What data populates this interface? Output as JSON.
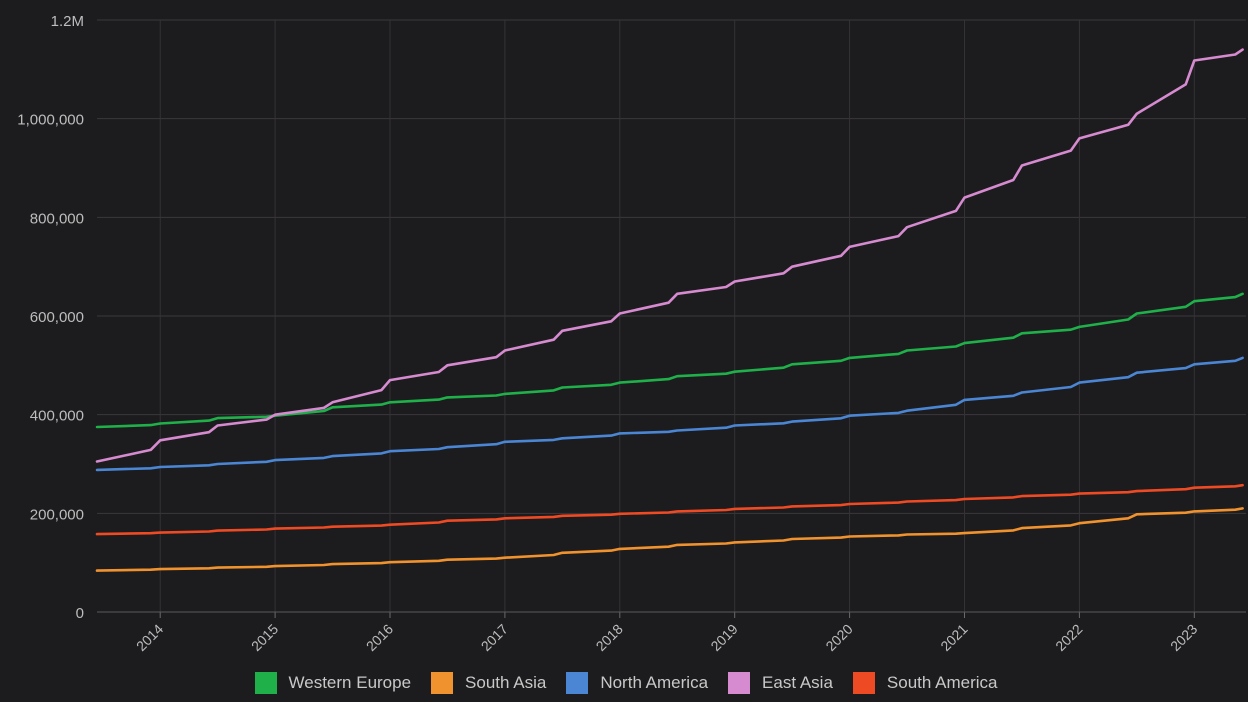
{
  "chart_data": {
    "type": "line",
    "title": "",
    "xlabel": "",
    "ylabel": "",
    "xlim": [
      2013.45,
      2023.45
    ],
    "ylim": [
      0,
      1200000
    ],
    "y_ticks": [
      {
        "value": 0,
        "label": "0"
      },
      {
        "value": 200000,
        "label": "200,000"
      },
      {
        "value": 400000,
        "label": "400,000"
      },
      {
        "value": 600000,
        "label": "600,000"
      },
      {
        "value": 800000,
        "label": "800,000"
      },
      {
        "value": 1000000,
        "label": "1,000,000"
      },
      {
        "value": 1200000,
        "label": "1.2M"
      }
    ],
    "x_ticks": [
      {
        "value": 2014,
        "label": "2014"
      },
      {
        "value": 2015,
        "label": "2015"
      },
      {
        "value": 2016,
        "label": "2016"
      },
      {
        "value": 2017,
        "label": "2017"
      },
      {
        "value": 2018,
        "label": "2018"
      },
      {
        "value": 2019,
        "label": "2019"
      },
      {
        "value": 2020,
        "label": "2020"
      },
      {
        "value": 2021,
        "label": "2021"
      },
      {
        "value": 2022,
        "label": "2022"
      },
      {
        "value": 2023,
        "label": "2023"
      }
    ],
    "grid": true,
    "legend_position": "bottom",
    "series": [
      {
        "name": "Western Europe",
        "color": "#1fb04a",
        "x": [
          2013.45,
          2014.0,
          2014.5,
          2015.0,
          2015.5,
          2016.0,
          2016.5,
          2017.0,
          2017.5,
          2018.0,
          2018.5,
          2019.0,
          2019.5,
          2020.0,
          2020.5,
          2021.0,
          2021.5,
          2022.0,
          2022.5,
          2023.0,
          2023.42
        ],
        "values": [
          375000,
          382000,
          393000,
          398000,
          415000,
          425000,
          435000,
          442000,
          455000,
          465000,
          478000,
          487000,
          502000,
          515000,
          530000,
          545000,
          565000,
          578000,
          605000,
          630000,
          645000
        ]
      },
      {
        "name": "South Asia",
        "color": "#f0922e",
        "x": [
          2013.45,
          2014.0,
          2014.5,
          2015.0,
          2015.5,
          2016.0,
          2016.5,
          2017.0,
          2017.5,
          2018.0,
          2018.5,
          2019.0,
          2019.5,
          2020.0,
          2020.5,
          2021.0,
          2021.5,
          2022.0,
          2022.5,
          2023.0,
          2023.42
        ],
        "values": [
          84000,
          87000,
          90000,
          93000,
          97000,
          101000,
          106000,
          110000,
          120000,
          128000,
          136000,
          141000,
          148000,
          153000,
          157000,
          160000,
          170000,
          180000,
          198000,
          204000,
          210000
        ]
      },
      {
        "name": "North America",
        "color": "#4a86d4",
        "x": [
          2013.45,
          2014.0,
          2014.5,
          2015.0,
          2015.5,
          2016.0,
          2016.5,
          2017.0,
          2017.5,
          2018.0,
          2018.5,
          2019.0,
          2019.5,
          2020.0,
          2020.5,
          2021.0,
          2021.5,
          2022.0,
          2022.5,
          2023.0,
          2023.42
        ],
        "values": [
          288000,
          294000,
          300000,
          308000,
          316000,
          326000,
          334000,
          345000,
          352000,
          362000,
          368000,
          378000,
          386000,
          398000,
          408000,
          430000,
          445000,
          465000,
          485000,
          502000,
          515000
        ]
      },
      {
        "name": "East Asia",
        "color": "#d68ad0",
        "x": [
          2013.45,
          2014.0,
          2014.5,
          2015.0,
          2015.5,
          2016.0,
          2016.5,
          2017.0,
          2017.5,
          2018.0,
          2018.5,
          2019.0,
          2019.5,
          2020.0,
          2020.5,
          2021.0,
          2021.5,
          2022.0,
          2022.5,
          2023.0,
          2023.42
        ],
        "values": [
          305000,
          348000,
          378000,
          400000,
          425000,
          470000,
          500000,
          530000,
          570000,
          605000,
          645000,
          670000,
          700000,
          740000,
          780000,
          840000,
          905000,
          960000,
          1010000,
          1118000,
          1140000
        ]
      },
      {
        "name": "South America",
        "color": "#ee4a24",
        "x": [
          2013.45,
          2014.0,
          2014.5,
          2015.0,
          2015.5,
          2016.0,
          2016.5,
          2017.0,
          2017.5,
          2018.0,
          2018.5,
          2019.0,
          2019.5,
          2020.0,
          2020.5,
          2021.0,
          2021.5,
          2022.0,
          2022.5,
          2023.0,
          2023.42
        ],
        "values": [
          158000,
          161000,
          165000,
          169000,
          173000,
          177000,
          185000,
          190000,
          195000,
          199000,
          204000,
          209000,
          214000,
          219000,
          224000,
          229000,
          235000,
          240000,
          245000,
          252000,
          257000
        ]
      }
    ]
  }
}
